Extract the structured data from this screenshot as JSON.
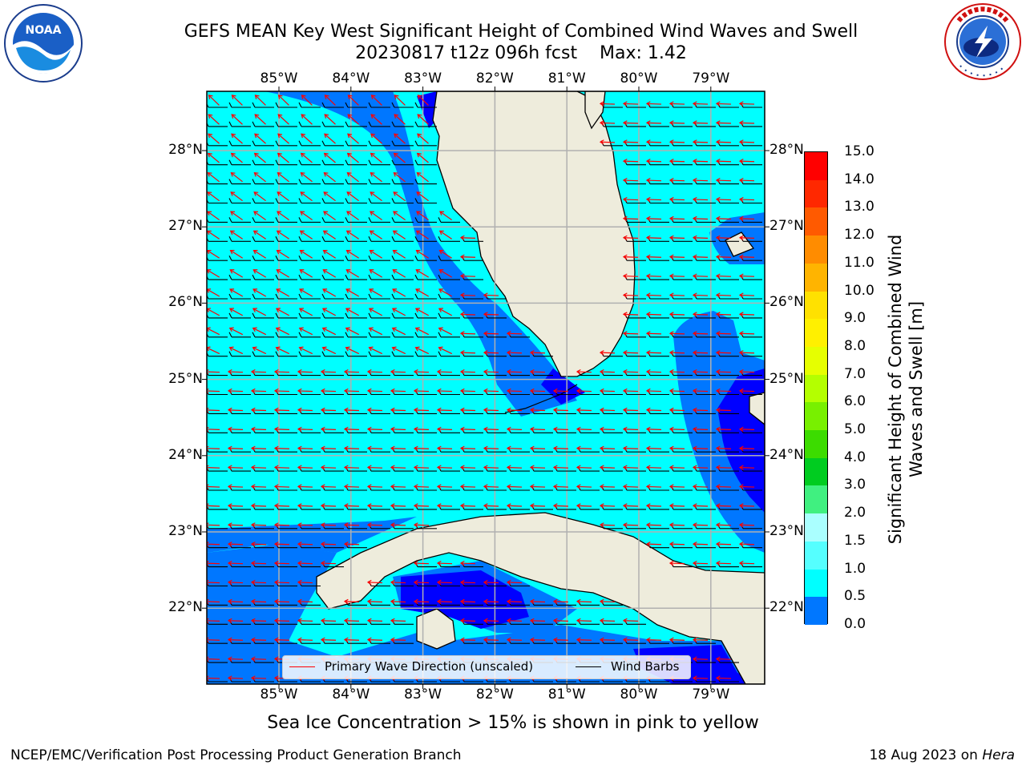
{
  "title": {
    "line1": "GEFS MEAN Key West Significant Height of Combined Wind Waves and Swell",
    "line2": "20230817 t12z 096h fcst    Max: 1.42"
  },
  "logos": {
    "left": {
      "text": "NOAA",
      "ring_text": "NATIONAL OCEANIC AND ATMOSPHERIC ADMINISTRATION · U.S. DEPARTMENT OF COMMERCE"
    },
    "right": {
      "ring_text": "NATIONAL WEATHER SERVICE"
    }
  },
  "map": {
    "lon_ticks": [
      "85°W",
      "84°W",
      "83°W",
      "82°W",
      "81°W",
      "80°W",
      "79°W"
    ],
    "lat_ticks": [
      "28°N",
      "27°N",
      "26°N",
      "25°N",
      "24°N",
      "23°N",
      "22°N"
    ],
    "colors": {
      "land": "#eeecdc",
      "sea_0_5": "#0000ff",
      "sea_0_5_1_0": "#0077ff",
      "sea_1_0_1_5": "#00ffff",
      "grid": "#b0b0b0",
      "wave_arrow": "#ff0000",
      "wind_barb": "#000000"
    }
  },
  "colorbar": {
    "title": "Significant Height of Combined Wind Waves and Swell [m]",
    "labels": [
      "15.0",
      "14.0",
      "13.0",
      "12.0",
      "11.0",
      "10.0",
      "9.0",
      "8.0",
      "7.0",
      "6.0",
      "5.0",
      "4.0",
      "3.0",
      "2.0",
      "1.5",
      "1.0",
      "0.5",
      "0.0"
    ],
    "colors": [
      "#ff0000",
      "#ff2800",
      "#ff5a00",
      "#ff8c00",
      "#ffb400",
      "#ffe100",
      "#fff000",
      "#e6ff00",
      "#b4ff00",
      "#78f000",
      "#3cdc00",
      "#00cc20",
      "#40f080",
      "#aaffff",
      "#55ffff",
      "#00ffff",
      "#0077ff",
      "#0000ff"
    ]
  },
  "legend": {
    "wave_label": "Primary Wave Direction (unscaled)",
    "wind_label": "Wind Barbs"
  },
  "sea_ice_note": "Sea Ice Concentration > 15% is shown in pink to yellow",
  "footer": {
    "left": "NCEP/EMC/Verification Post Processing Product Generation Branch",
    "right_date": "18 Aug 2023 on",
    "right_host": "Hera"
  }
}
